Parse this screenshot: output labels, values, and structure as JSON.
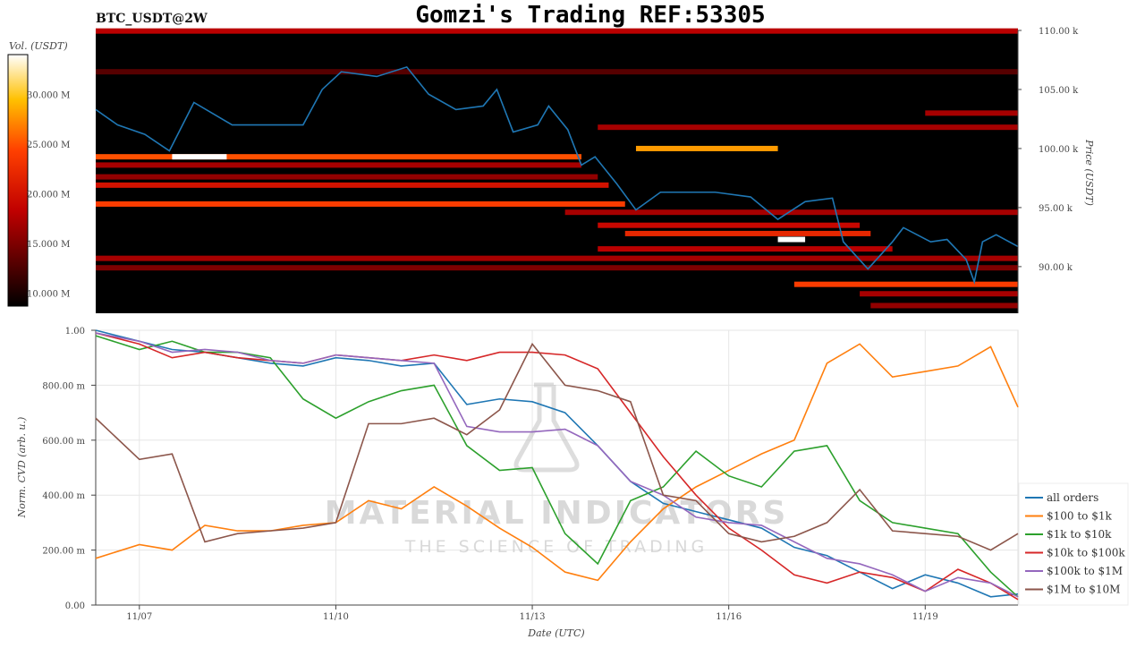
{
  "chart_data": [
    {
      "type": "heatmap",
      "title": "Gomzi's Trading REF:53305",
      "symbol": "BTC_USDT@2W",
      "xlim": [
        "11/06 08:00",
        "11/20 10:00"
      ],
      "ylim": [
        86.05,
        110.0
      ],
      "ylabel": "Price (USDT)",
      "y_ticks": [
        "110.00 k",
        "105.00 k",
        "100.00 k",
        "95.00 k",
        "90.00 k"
      ],
      "y_tick_values": [
        110,
        105,
        100,
        95,
        90
      ],
      "colorbar": {
        "label": "Vol. (USDT)",
        "range": [
          8.7,
          34
        ],
        "ticks": [
          "10.000 M",
          "15.000 M",
          "20.000 M",
          "25.000 M",
          "30.000 M"
        ],
        "tick_values": [
          10,
          15,
          20,
          25,
          30
        ],
        "colormap": "hot"
      },
      "background_color": "#000000",
      "price_line_color": "#1f77b4",
      "bands": [
        {
          "price": 109.95,
          "start": "11/06 08:00",
          "end": "11/20 10:00",
          "vol": 18
        },
        {
          "price": 106.5,
          "start": "11/06 08:00",
          "end": "11/20 10:00",
          "vol": 13
        },
        {
          "price": 103.0,
          "start": "11/19 00:00",
          "end": "11/20 10:00",
          "vol": 17
        },
        {
          "price": 101.8,
          "start": "11/14 00:00",
          "end": "11/20 10:00",
          "vol": 17
        },
        {
          "price": 100.0,
          "start": "11/14 14:00",
          "end": "11/16 18:00",
          "vol": 28
        },
        {
          "price": 99.3,
          "start": "11/06 08:00",
          "end": "11/13 18:00",
          "vol": 25
        },
        {
          "price": 99.3,
          "start": "11/07 12:00",
          "end": "11/08 08:00",
          "vol": 34
        },
        {
          "price": 98.6,
          "start": "11/06 08:00",
          "end": "11/13 18:00",
          "vol": 17
        },
        {
          "price": 97.6,
          "start": "11/06 08:00",
          "end": "11/14 00:00",
          "vol": 16
        },
        {
          "price": 96.9,
          "start": "11/06 08:00",
          "end": "11/14 04:00",
          "vol": 20
        },
        {
          "price": 95.3,
          "start": "11/06 08:00",
          "end": "11/14 10:00",
          "vol": 24
        },
        {
          "price": 94.6,
          "start": "11/13 12:00",
          "end": "11/20 10:00",
          "vol": 17
        },
        {
          "price": 93.5,
          "start": "11/14 00:00",
          "end": "11/18 00:00",
          "vol": 19
        },
        {
          "price": 92.8,
          "start": "11/14 10:00",
          "end": "11/18 04:00",
          "vol": 22
        },
        {
          "price": 92.3,
          "start": "11/16 18:00",
          "end": "11/17 04:00",
          "vol": 34
        },
        {
          "price": 91.5,
          "start": "11/14 00:00",
          "end": "11/18 12:00",
          "vol": 18
        },
        {
          "price": 90.7,
          "start": "11/06 08:00",
          "end": "11/20 10:00",
          "vol": 17
        },
        {
          "price": 89.9,
          "start": "11/06 08:00",
          "end": "11/20 10:00",
          "vol": 15
        },
        {
          "price": 88.5,
          "start": "11/17 00:00",
          "end": "11/20 10:00",
          "vol": 24
        },
        {
          "price": 87.7,
          "start": "11/18 00:00",
          "end": "11/20 10:00",
          "vol": 17
        },
        {
          "price": 86.7,
          "start": "11/18 04:00",
          "end": "11/20 10:00",
          "vol": 16
        }
      ],
      "price": [
        [
          "11/06 08:00",
          103.3
        ],
        [
          "11/06 16:00",
          102.0
        ],
        [
          "11/07 02:00",
          101.2
        ],
        [
          "11/07 11:00",
          99.8
        ],
        [
          "11/07 20:00",
          103.9
        ],
        [
          "11/08 10:00",
          102.0
        ],
        [
          "11/08 23:00",
          102.0
        ],
        [
          "11/09 12:00",
          102.0
        ],
        [
          "11/09 19:00",
          105.0
        ],
        [
          "11/10 02:00",
          106.5
        ],
        [
          "11/10 15:00",
          106.1
        ],
        [
          "11/11 02:00",
          106.9
        ],
        [
          "11/11 10:00",
          104.6
        ],
        [
          "11/11 20:00",
          103.3
        ],
        [
          "11/12 06:00",
          103.6
        ],
        [
          "11/12 11:00",
          105.0
        ],
        [
          "11/12 17:00",
          101.4
        ],
        [
          "11/13 02:00",
          102.0
        ],
        [
          "11/13 06:00",
          103.6
        ],
        [
          "11/13 13:00",
          101.6
        ],
        [
          "11/13 18:00",
          98.6
        ],
        [
          "11/13 23:00",
          99.3
        ],
        [
          "11/14 07:00",
          97.0
        ],
        [
          "11/14 14:00",
          94.8
        ],
        [
          "11/14 23:00",
          96.3
        ],
        [
          "11/15 12:00",
          96.3
        ],
        [
          "11/15 19:00",
          96.3
        ],
        [
          "11/16 08:00",
          95.9
        ],
        [
          "11/16 18:00",
          94.0
        ],
        [
          "11/17 04:00",
          95.5
        ],
        [
          "11/17 14:00",
          95.8
        ],
        [
          "11/17 18:00",
          92.1
        ],
        [
          "11/18 03:00",
          89.8
        ],
        [
          "11/18 12:00",
          92.1
        ],
        [
          "11/18 16:00",
          93.3
        ],
        [
          "11/19 02:00",
          92.1
        ],
        [
          "11/19 08:00",
          92.3
        ],
        [
          "11/19 15:00",
          90.6
        ],
        [
          "11/19 18:00",
          88.7
        ],
        [
          "11/19 21:00",
          92.1
        ],
        [
          "11/20 02:00",
          92.7
        ],
        [
          "11/20 10:00",
          91.7
        ]
      ]
    },
    {
      "type": "line",
      "xlabel": "Date (UTC)",
      "ylabel": "Norm. CVD (arb. u.)",
      "xlim": [
        "11/06 08:00",
        "11/20 10:00"
      ],
      "ylim": [
        0,
        1
      ],
      "grid": true,
      "legend_placement": "right",
      "x_ticks": [
        "11/07",
        "11/10",
        "11/13",
        "11/16",
        "11/19"
      ],
      "y_ticks": [
        "0.00",
        "200.00 m",
        "400.00 m",
        "600.00 m",
        "800.00 m",
        "1.00"
      ],
      "y_tick_values": [
        0,
        0.2,
        0.4,
        0.6,
        0.8,
        1.0
      ],
      "x": [
        "11/06 08:00",
        "11/07 00:00",
        "11/07 12:00",
        "11/08 00:00",
        "11/08 12:00",
        "11/09 00:00",
        "11/09 12:00",
        "11/10 00:00",
        "11/10 12:00",
        "11/11 00:00",
        "11/11 12:00",
        "11/12 00:00",
        "11/12 12:00",
        "11/13 00:00",
        "11/13 12:00",
        "11/14 00:00",
        "11/14 12:00",
        "11/15 00:00",
        "11/15 12:00",
        "11/16 00:00",
        "11/16 12:00",
        "11/17 00:00",
        "11/17 12:00",
        "11/18 00:00",
        "11/18 12:00",
        "11/19 00:00",
        "11/19 12:00",
        "11/20 00:00",
        "11/20 10:00"
      ],
      "series": [
        {
          "name": "all orders",
          "color": "#1f77b4",
          "values": [
            1.0,
            0.96,
            0.93,
            0.92,
            0.9,
            0.88,
            0.87,
            0.9,
            0.89,
            0.87,
            0.88,
            0.73,
            0.75,
            0.74,
            0.7,
            0.58,
            0.45,
            0.37,
            0.34,
            0.31,
            0.28,
            0.21,
            0.18,
            0.12,
            0.06,
            0.11,
            0.08,
            0.03,
            0.04
          ]
        },
        {
          "name": "$100 to $1k",
          "color": "#ff7f0e",
          "values": [
            0.17,
            0.22,
            0.2,
            0.29,
            0.27,
            0.27,
            0.29,
            0.3,
            0.38,
            0.35,
            0.43,
            0.36,
            0.28,
            0.21,
            0.12,
            0.09,
            0.23,
            0.35,
            0.43,
            0.49,
            0.55,
            0.6,
            0.88,
            0.95,
            0.83,
            0.85,
            0.87,
            0.94,
            0.72
          ]
        },
        {
          "name": "$1k to $10k",
          "color": "#2ca02c",
          "values": [
            0.98,
            0.93,
            0.96,
            0.92,
            0.92,
            0.9,
            0.75,
            0.68,
            0.74,
            0.78,
            0.8,
            0.58,
            0.49,
            0.5,
            0.26,
            0.15,
            0.38,
            0.43,
            0.56,
            0.47,
            0.43,
            0.56,
            0.58,
            0.38,
            0.3,
            0.28,
            0.26,
            0.12,
            0.03
          ]
        },
        {
          "name": "$10k to $100k",
          "color": "#d62728",
          "values": [
            0.99,
            0.95,
            0.9,
            0.92,
            0.9,
            0.89,
            0.88,
            0.91,
            0.9,
            0.89,
            0.91,
            0.89,
            0.92,
            0.92,
            0.91,
            0.86,
            0.7,
            0.54,
            0.4,
            0.28,
            0.2,
            0.11,
            0.08,
            0.12,
            0.1,
            0.05,
            0.13,
            0.08,
            0.02
          ]
        },
        {
          "name": "$100k to $1M",
          "color": "#9467bd",
          "values": [
            0.99,
            0.96,
            0.92,
            0.93,
            0.92,
            0.89,
            0.88,
            0.91,
            0.9,
            0.89,
            0.88,
            0.65,
            0.63,
            0.63,
            0.64,
            0.58,
            0.45,
            0.4,
            0.32,
            0.3,
            0.29,
            0.23,
            0.17,
            0.15,
            0.11,
            0.05,
            0.1,
            0.08,
            0.03
          ]
        },
        {
          "name": "$1M to $10M",
          "color": "#8c564b",
          "values": [
            0.68,
            0.53,
            0.55,
            0.23,
            0.26,
            0.27,
            0.28,
            0.3,
            0.66,
            0.66,
            0.68,
            0.62,
            0.71,
            0.95,
            0.8,
            0.78,
            0.74,
            0.4,
            0.38,
            0.26,
            0.23,
            0.25,
            0.3,
            0.42,
            0.27,
            0.26,
            0.25,
            0.2,
            0.26
          ]
        }
      ]
    }
  ],
  "watermark": {
    "line1": "MATERIAL INDICATORS",
    "line2": "THE SCIENCE OF TRADING"
  }
}
